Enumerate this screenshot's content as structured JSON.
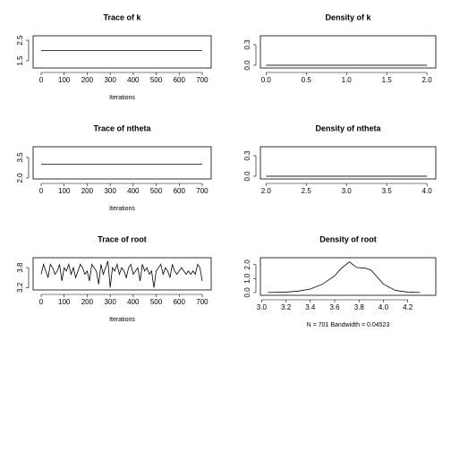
{
  "chart_data": [
    {
      "type": "line",
      "title": "Trace of k",
      "x_label": "Iterations",
      "color": "#000000",
      "x": [
        0,
        700
      ],
      "values": [
        2,
        2
      ],
      "xlim": [
        -35,
        739
      ],
      "ylim": [
        1.15,
        2.72
      ],
      "xticks": [
        0,
        100,
        200,
        300,
        400,
        500,
        600,
        700
      ],
      "yticks": [
        1.5,
        2.5
      ]
    },
    {
      "type": "line",
      "title": "Density of k",
      "color": "#000000",
      "x": [
        0,
        2
      ],
      "values": [
        0,
        0
      ],
      "xlim": [
        -0.07,
        2.11
      ],
      "ylim": [
        -0.04,
        0.43
      ],
      "xticks": [
        {
          "value": 0,
          "label": "0.0"
        },
        0.5,
        {
          "value": 1,
          "label": "1.0"
        },
        1.5,
        {
          "value": 2,
          "label": "2.0"
        }
      ],
      "yticks": [
        {
          "value": 0,
          "label": "0.0"
        },
        0.3
      ]
    },
    {
      "type": "line",
      "title": "Trace of ntheta",
      "x_label": "Iterations",
      "color": "#000000",
      "x": [
        0,
        700
      ],
      "values": [
        3,
        3
      ],
      "xlim": [
        -35,
        739
      ],
      "ylim": [
        1.93,
        4.28
      ],
      "xticks": [
        0,
        100,
        200,
        300,
        400,
        500,
        600,
        700
      ],
      "yticks": [
        {
          "value": 2,
          "label": "2.0"
        },
        3.5
      ]
    },
    {
      "type": "line",
      "title": "Density of ntheta",
      "color": "#000000",
      "x": [
        2,
        4
      ],
      "values": [
        0,
        0
      ],
      "xlim": [
        1.93,
        4.11
      ],
      "ylim": [
        -0.04,
        0.43
      ],
      "xticks": [
        {
          "value": 2,
          "label": "2.0"
        },
        2.5,
        {
          "value": 3,
          "label": "3.0"
        },
        3.5,
        {
          "value": 4,
          "label": "4.0"
        }
      ],
      "yticks": [
        {
          "value": 0,
          "label": "0.0"
        },
        0.3
      ]
    },
    {
      "type": "line",
      "title": "Trace of root",
      "x_label": "Iterations",
      "color": "#000000",
      "x": [
        0,
        10,
        20,
        30,
        40,
        50,
        60,
        70,
        80,
        90,
        100,
        110,
        120,
        130,
        140,
        150,
        160,
        170,
        180,
        190,
        200,
        210,
        220,
        230,
        240,
        250,
        260,
        270,
        280,
        290,
        300,
        310,
        320,
        330,
        340,
        350,
        360,
        370,
        380,
        390,
        400,
        410,
        420,
        430,
        440,
        450,
        460,
        470,
        480,
        490,
        500,
        510,
        520,
        530,
        540,
        550,
        560,
        570,
        580,
        590,
        600,
        610,
        620,
        630,
        640,
        650,
        660,
        670,
        680,
        690,
        700
      ],
      "values": [
        3.6,
        3.9,
        3.7,
        3.5,
        3.9,
        3.8,
        3.6,
        3.7,
        3.9,
        3.4,
        3.8,
        3.7,
        3.9,
        3.6,
        3.8,
        3.5,
        3.7,
        3.9,
        3.8,
        3.6,
        3.7,
        3.4,
        3.9,
        3.8,
        3.7,
        3.3,
        3.9,
        3.6,
        3.8,
        4.0,
        3.2,
        3.8,
        3.7,
        3.9,
        3.6,
        3.8,
        3.7,
        3.5,
        3.8,
        3.9,
        3.6,
        3.7,
        3.8,
        3.4,
        3.9,
        3.7,
        3.8,
        3.6,
        3.7,
        3.2,
        3.7,
        3.8,
        3.9,
        3.6,
        3.8,
        3.7,
        3.5,
        3.9,
        3.7,
        3.6,
        3.7,
        3.8,
        3.7,
        3.6,
        3.7,
        3.6,
        3.7,
        3.6,
        3.9,
        3.8,
        3.4
      ],
      "xlim": [
        -35,
        739
      ],
      "ylim": [
        3.13,
        4.1
      ],
      "xticks": [
        0,
        100,
        200,
        300,
        400,
        500,
        600,
        700
      ],
      "yticks": [
        3.2,
        3.8
      ]
    },
    {
      "type": "line",
      "title": "Density of root",
      "x_label": "N = 701   Bandwidth = 0.04523",
      "color": "#000000",
      "x": [
        3.05,
        3.2,
        3.3,
        3.4,
        3.5,
        3.6,
        3.65,
        3.72,
        3.78,
        3.85,
        3.9,
        3.95,
        4.0,
        4.1,
        4.2,
        4.3
      ],
      "values": [
        0,
        0.03,
        0.1,
        0.25,
        0.6,
        1.2,
        1.7,
        2.2,
        1.8,
        1.75,
        1.6,
        1.1,
        0.6,
        0.15,
        0.03,
        0
      ],
      "xlim": [
        2.99,
        4.43
      ],
      "ylim": [
        -0.2,
        2.5
      ],
      "xticks": [
        {
          "value": 3,
          "label": "3.0"
        },
        3.2,
        3.4,
        3.6,
        3.8,
        {
          "value": 4,
          "label": "4.0"
        },
        4.2
      ],
      "yticks": [
        {
          "value": 0,
          "label": "0.0"
        },
        {
          "value": 1,
          "label": "1.0"
        },
        {
          "value": 2,
          "label": "2.0"
        }
      ]
    }
  ]
}
